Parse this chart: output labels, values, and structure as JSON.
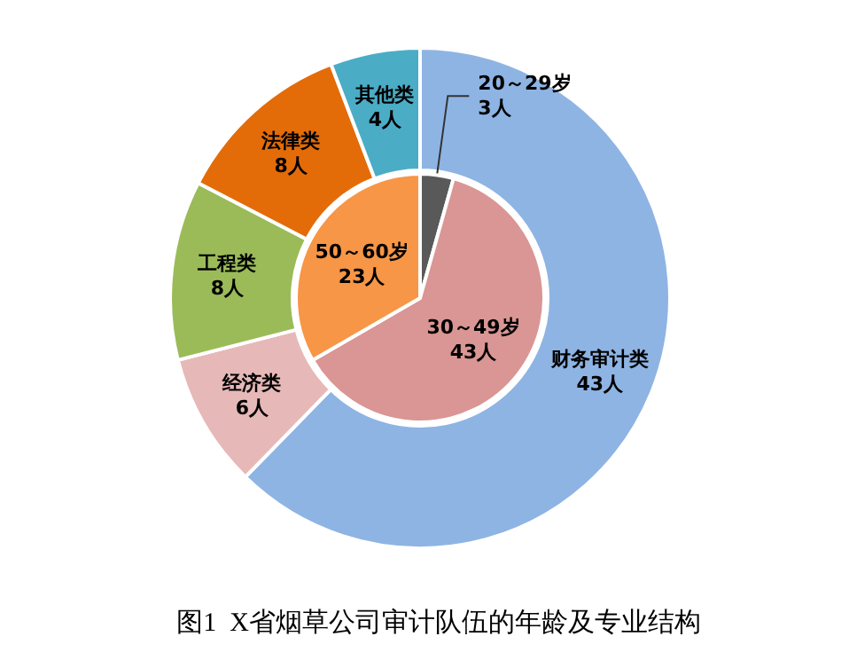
{
  "chart_data": [
    {
      "type": "pie",
      "categories": [
        "20～29岁",
        "30～49岁",
        "50～60岁"
      ],
      "values": [
        3,
        43,
        23
      ],
      "value_labels": [
        "3人",
        "43人",
        "23人"
      ],
      "colors": [
        "#595959",
        "#d99694",
        "#f79646"
      ]
    },
    {
      "type": "donut",
      "categories": [
        "财务审计类",
        "经济类",
        "工程类",
        "法律类",
        "其他类"
      ],
      "values": [
        43,
        6,
        8,
        8,
        4
      ],
      "value_labels": [
        "43人",
        "6人",
        "8人",
        "8人",
        "4人"
      ],
      "colors": [
        "#8eb4e3",
        "#e6b9b8",
        "#9bbb59",
        "#e36c09",
        "#4bacc6"
      ],
      "annotations": [
        "图1  X省烟草公司审计队伍的年龄及专业结构"
      ]
    }
  ]
}
